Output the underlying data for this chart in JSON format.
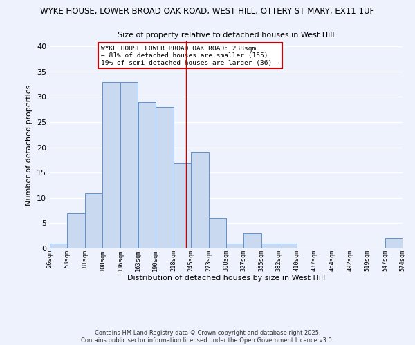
{
  "title1": "WYKE HOUSE, LOWER BROAD OAK ROAD, WEST HILL, OTTERY ST MARY, EX11 1UF",
  "title2": "Size of property relative to detached houses in West Hill",
  "xlabel": "Distribution of detached houses by size in West Hill",
  "ylabel": "Number of detached properties",
  "bin_edges": [
    26,
    53,
    81,
    108,
    136,
    163,
    190,
    218,
    245,
    273,
    300,
    327,
    355,
    382,
    410,
    437,
    464,
    492,
    519,
    547,
    574
  ],
  "bin_counts": [
    1,
    7,
    11,
    33,
    33,
    29,
    28,
    17,
    19,
    6,
    1,
    3,
    1,
    1,
    0,
    0,
    0,
    0,
    0,
    2
  ],
  "bar_color": "#c9d9f0",
  "bar_edge_color": "#6090d0",
  "vline_x": 238,
  "vline_color": "#cc0000",
  "annotation_line1": "WYKE HOUSE LOWER BROAD OAK ROAD: 238sqm",
  "annotation_line2": "← 81% of detached houses are smaller (155)",
  "annotation_line3": "19% of semi-detached houses are larger (36) →",
  "annotation_box_facecolor": "#ffffff",
  "annotation_box_edgecolor": "#cc0000",
  "ylim": [
    0,
    41
  ],
  "yticks": [
    0,
    5,
    10,
    15,
    20,
    25,
    30,
    35,
    40
  ],
  "background_color": "#eef2fc",
  "grid_color": "#ffffff",
  "footer1": "Contains HM Land Registry data © Crown copyright and database right 2025.",
  "footer2": "Contains public sector information licensed under the Open Government Licence v3.0.",
  "tick_labels": [
    "26sqm",
    "53sqm",
    "81sqm",
    "108sqm",
    "136sqm",
    "163sqm",
    "190sqm",
    "218sqm",
    "245sqm",
    "273sqm",
    "300sqm",
    "327sqm",
    "355sqm",
    "382sqm",
    "410sqm",
    "437sqm",
    "464sqm",
    "492sqm",
    "519sqm",
    "547sqm",
    "574sqm"
  ]
}
